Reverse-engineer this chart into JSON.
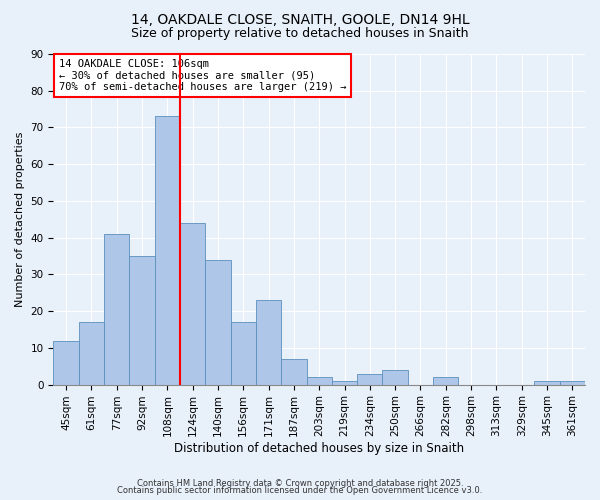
{
  "title1": "14, OAKDALE CLOSE, SNAITH, GOOLE, DN14 9HL",
  "title2": "Size of property relative to detached houses in Snaith",
  "xlabel": "Distribution of detached houses by size in Snaith",
  "ylabel": "Number of detached properties",
  "categories": [
    "45sqm",
    "61sqm",
    "77sqm",
    "92sqm",
    "108sqm",
    "124sqm",
    "140sqm",
    "156sqm",
    "171sqm",
    "187sqm",
    "203sqm",
    "219sqm",
    "234sqm",
    "250sqm",
    "266sqm",
    "282sqm",
    "298sqm",
    "313sqm",
    "329sqm",
    "345sqm",
    "361sqm"
  ],
  "values": [
    12,
    17,
    41,
    35,
    73,
    44,
    34,
    17,
    23,
    7,
    2,
    1,
    3,
    4,
    0,
    2,
    0,
    0,
    0,
    1,
    1
  ],
  "bar_color": "#aec6e8",
  "bar_edge_color": "#5a8fbd",
  "vline_x": 4.5,
  "vline_color": "red",
  "annotation_line1": "14 OAKDALE CLOSE: 106sqm",
  "annotation_line2": "← 30% of detached houses are smaller (95)",
  "annotation_line3": "70% of semi-detached houses are larger (219) →",
  "annotation_box_color": "white",
  "annotation_box_edge": "red",
  "ylim": [
    0,
    90
  ],
  "yticks": [
    0,
    10,
    20,
    30,
    40,
    50,
    60,
    70,
    80,
    90
  ],
  "background_color": "#e8f0fa",
  "footer1": "Contains HM Land Registry data © Crown copyright and database right 2025.",
  "footer2": "Contains public sector information licensed under the Open Government Licence v3.0.",
  "title1_fontsize": 10,
  "title2_fontsize": 9,
  "xlabel_fontsize": 8.5,
  "ylabel_fontsize": 8,
  "tick_fontsize": 7.5,
  "annotation_fontsize": 7.5,
  "footer_fontsize": 6
}
